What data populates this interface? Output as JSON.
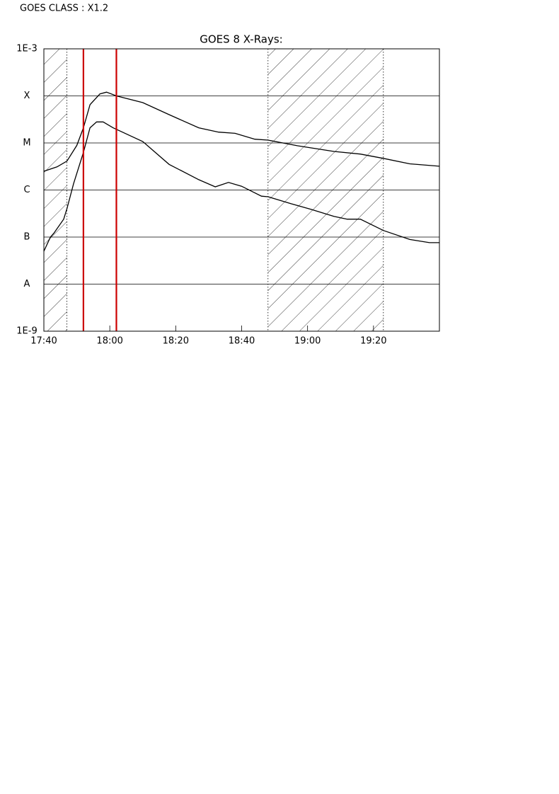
{
  "header": "GOES CLASS : X1.2",
  "chart_data": {
    "type": "line",
    "title": "GOES 8 X-Rays:",
    "ylog": true,
    "grid": true,
    "xlim": [
      "17:40",
      "19:40"
    ],
    "xticks": [
      "17:40",
      "18:00",
      "18:20",
      "18:40",
      "19:00",
      "19:20"
    ],
    "ylim": [
      1e-09,
      0.001
    ],
    "yticks": [
      {
        "value": 1e-09,
        "label": "1E-9"
      },
      {
        "value": 1e-08,
        "label": "A"
      },
      {
        "value": 1e-07,
        "label": "B"
      },
      {
        "value": 1e-06,
        "label": "C"
      },
      {
        "value": 1e-05,
        "label": "M"
      },
      {
        "value": 0.0001,
        "label": "X"
      },
      {
        "value": 0.001,
        "label": "1E-3"
      }
    ],
    "shaded_intervals": [
      [
        "17:40",
        "17:47"
      ],
      [
        "18:48",
        "19:23"
      ]
    ],
    "markers": [
      "17:52",
      "18:02"
    ],
    "marker_color": "#cc0000",
    "series": [
      {
        "color": "#000000",
        "x": [
          "17:40",
          "17:44",
          "17:47",
          "17:50",
          "17:52",
          "17:54",
          "17:57",
          "17:59",
          "18:02",
          "18:10",
          "18:18",
          "18:27",
          "18:33",
          "18:38",
          "18:44",
          "18:48",
          "18:57",
          "19:08",
          "19:16",
          "19:23",
          "19:31",
          "19:40"
        ],
        "values": [
          2.5e-06,
          3.1e-06,
          4.1e-06,
          8.9e-06,
          2.1e-05,
          6.5e-05,
          0.00011,
          0.00012,
          0.0001,
          7.2e-05,
          4e-05,
          2.1e-05,
          1.7e-05,
          1.6e-05,
          1.2e-05,
          1.15e-05,
          8.7e-06,
          6.6e-06,
          5.8e-06,
          4.7e-06,
          3.6e-06,
          3.2e-06
        ]
      },
      {
        "color": "#000000",
        "x": [
          "17:40",
          "17:42",
          "17:43",
          "17:46",
          "17:47",
          "17:49",
          "17:52",
          "17:54",
          "17:56",
          "17:58",
          "18:01",
          "18:10",
          "18:18",
          "18:27",
          "18:32",
          "18:36",
          "18:40",
          "18:46",
          "18:48",
          "18:55",
          "19:01",
          "19:08",
          "19:12",
          "19:16",
          "19:23",
          "19:31",
          "19:37",
          "19:40"
        ],
        "values": [
          5e-08,
          1e-07,
          1.2e-07,
          2.4e-07,
          4e-07,
          1.35e-06,
          6.3e-06,
          2.1e-05,
          2.8e-05,
          2.8e-05,
          2.1e-05,
          1.07e-05,
          3.5e-06,
          1.66e-06,
          1.17e-06,
          1.45e-06,
          1.2e-06,
          7.4e-07,
          7.2e-07,
          5.1e-07,
          3.9e-07,
          2.75e-07,
          2.4e-07,
          2.4e-07,
          1.38e-07,
          8.9e-08,
          7.6e-08,
          7.6e-08
        ]
      }
    ]
  }
}
